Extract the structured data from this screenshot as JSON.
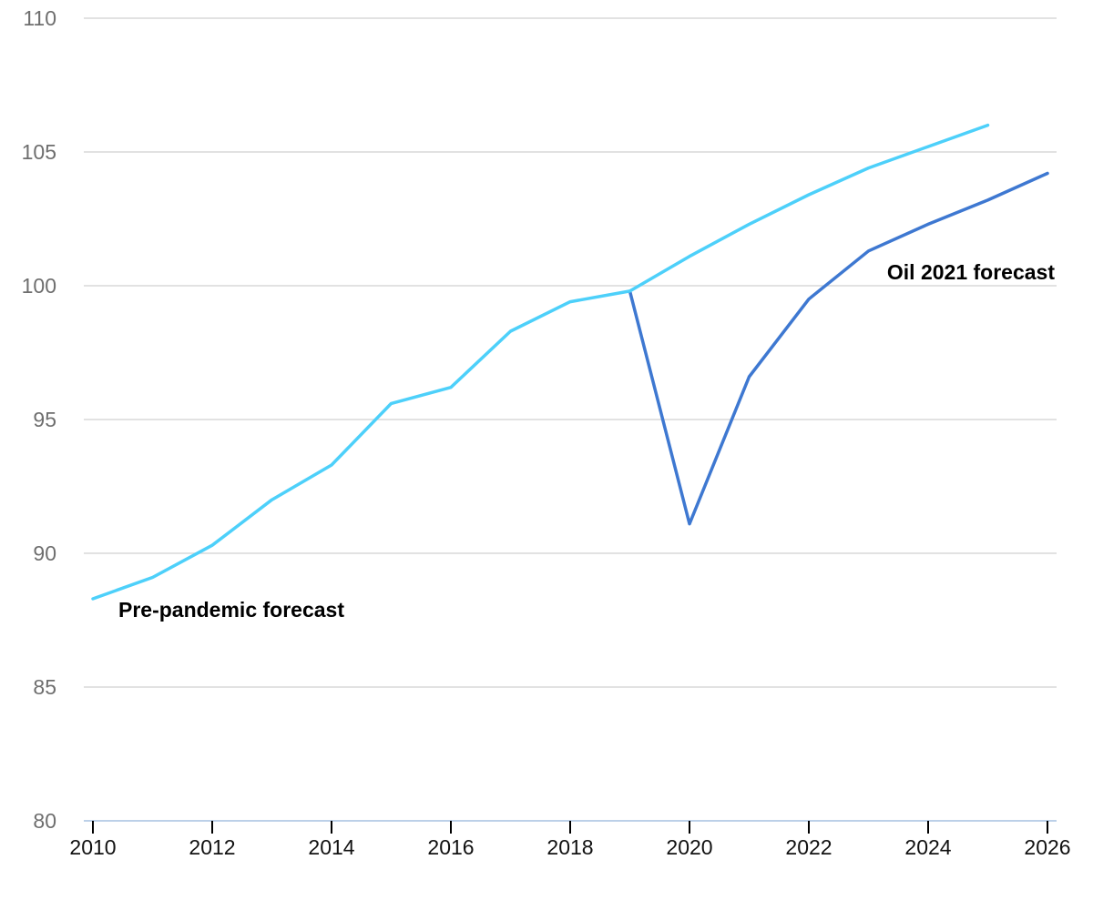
{
  "chart_data": {
    "type": "line",
    "title": "",
    "xlabel": "",
    "ylabel": "",
    "xlim": [
      2010,
      2026
    ],
    "ylim": [
      80,
      110
    ],
    "y_ticks": [
      80,
      85,
      90,
      95,
      100,
      105,
      110
    ],
    "x_ticks": [
      2010,
      2012,
      2014,
      2016,
      2018,
      2020,
      2022,
      2024,
      2026
    ],
    "grid": true,
    "series": [
      {
        "name": "Pre-pandemic forecast",
        "color": "#4dd0fa",
        "x": [
          2010,
          2011,
          2012,
          2013,
          2014,
          2015,
          2016,
          2017,
          2018,
          2019,
          2020,
          2021,
          2022,
          2023,
          2024,
          2025
        ],
        "y": [
          88.3,
          89.1,
          90.3,
          92.0,
          93.3,
          95.6,
          96.2,
          98.3,
          99.4,
          99.8,
          101.1,
          102.3,
          103.4,
          104.4,
          105.2,
          106.0
        ]
      },
      {
        "name": "Oil 2021 forecast",
        "color": "#3e78d1",
        "x": [
          2019,
          2020,
          2021,
          2022,
          2023,
          2024,
          2025,
          2026
        ],
        "y": [
          99.8,
          91.1,
          96.6,
          99.5,
          101.3,
          102.3,
          103.2,
          104.2
        ]
      }
    ]
  }
}
